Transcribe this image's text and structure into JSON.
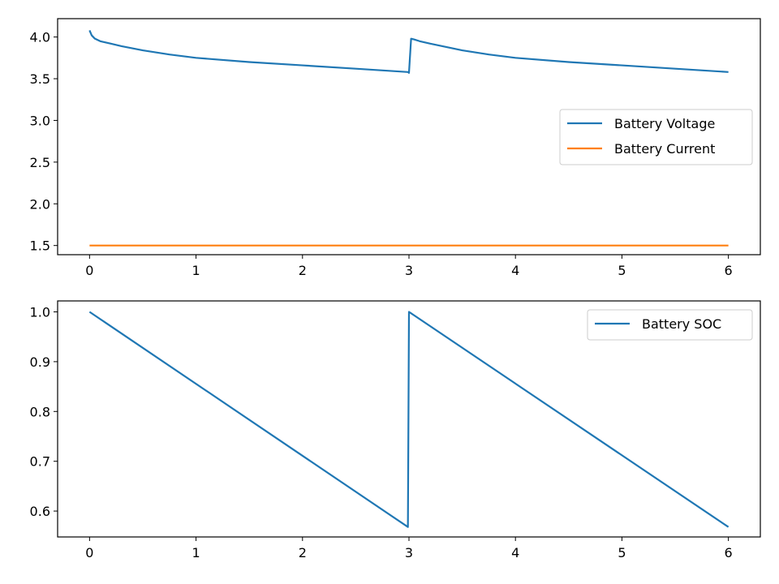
{
  "chart_data": [
    {
      "type": "line",
      "title": "",
      "xlabel": "",
      "ylabel": "",
      "xlim": [
        -0.3,
        6.3
      ],
      "ylim": [
        1.39,
        4.22
      ],
      "xticks": [
        0,
        1,
        2,
        3,
        4,
        5,
        6
      ],
      "yticks": [
        1.5,
        2.0,
        2.5,
        3.0,
        3.5,
        4.0
      ],
      "ytick_format": 1,
      "grid": false,
      "legend": {
        "position": "center-right"
      },
      "series": [
        {
          "name": "Battery Voltage",
          "color": "#1f77b4",
          "x": [
            0,
            0.02,
            0.05,
            0.1,
            0.2,
            0.3,
            0.5,
            0.75,
            1.0,
            1.5,
            2.0,
            2.5,
            2.99,
            3.0,
            3.02,
            3.05,
            3.1,
            3.2,
            3.35,
            3.5,
            3.75,
            4.0,
            4.5,
            5.0,
            5.5,
            6.0
          ],
          "y": [
            4.08,
            4.02,
            3.98,
            3.95,
            3.92,
            3.89,
            3.84,
            3.79,
            3.75,
            3.7,
            3.66,
            3.62,
            3.58,
            3.57,
            3.98,
            3.97,
            3.95,
            3.92,
            3.88,
            3.84,
            3.79,
            3.75,
            3.7,
            3.66,
            3.62,
            3.58
          ]
        },
        {
          "name": "Battery Current",
          "color": "#ff7f0e",
          "x": [
            0,
            6
          ],
          "y": [
            1.5,
            1.5
          ]
        }
      ]
    },
    {
      "type": "line",
      "title": "",
      "xlabel": "",
      "ylabel": "",
      "xlim": [
        -0.3,
        6.3
      ],
      "ylim": [
        0.548,
        1.022
      ],
      "xticks": [
        0,
        1,
        2,
        3,
        4,
        5,
        6
      ],
      "yticks": [
        0.6,
        0.7,
        0.8,
        0.9,
        1.0
      ],
      "ytick_format": 1,
      "grid": false,
      "legend": {
        "position": "top-right"
      },
      "series": [
        {
          "name": "Battery SOC",
          "color": "#1f77b4",
          "x": [
            0,
            2.99,
            3.0,
            6.0
          ],
          "y": [
            1.0,
            0.568,
            1.0,
            0.568
          ]
        }
      ]
    }
  ]
}
